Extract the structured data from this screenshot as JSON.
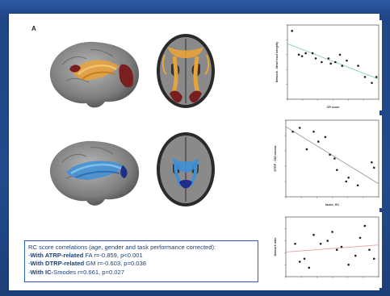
{
  "panel": {
    "label": "A"
  },
  "caption": {
    "line1": "RC score correlations (age, gender and task performance corrected):",
    "line2_prefix": "-",
    "line2_bold": "With ATRP-related",
    "line2_rest": " FA  r=-0.859, p<0.001",
    "line3_prefix": "-",
    "line3_bold": "With DTRP-related",
    "line3_rest": " GM  r=-0.603, p=0.038",
    "line4_prefix": "-",
    "line4_bold": "With IC-",
    "line4_rest": "Smodes r=0.661, p=0.027"
  },
  "colors": {
    "background": "#1f4585",
    "tract_orange": "#e8a23a",
    "region_red": "#7a1f1f",
    "tract_blue": "#3f8fd6",
    "fit_green": "#8fd0b0",
    "fit_gray": "#9a9a9a",
    "fit_red": "#e8a0a0"
  },
  "chart_data": [
    {
      "type": "scatter",
      "ylabel": "Network - Mean tract integrity",
      "xlabel": "CR score",
      "fit_line": true,
      "points": [
        [
          -0.9,
          0.92
        ],
        [
          -0.75,
          0.6
        ],
        [
          -0.68,
          0.58
        ],
        [
          -0.6,
          0.62
        ],
        [
          -0.45,
          0.62
        ],
        [
          -0.38,
          0.55
        ],
        [
          -0.25,
          0.5
        ],
        [
          -0.1,
          0.55
        ],
        [
          -0.05,
          0.48
        ],
        [
          0.05,
          0.5
        ],
        [
          0.15,
          0.6
        ],
        [
          0.2,
          0.45
        ],
        [
          0.3,
          0.52
        ],
        [
          0.55,
          0.45
        ],
        [
          0.7,
          0.3
        ],
        [
          0.85,
          0.22
        ],
        [
          0.95,
          0.3
        ]
      ]
    },
    {
      "type": "scatter",
      "ylabel": "DTRP - GM volume",
      "xlabel": "factor_RC",
      "fit_line": true,
      "points": [
        [
          -0.85,
          0.85
        ],
        [
          -0.7,
          0.9
        ],
        [
          -0.55,
          0.62
        ],
        [
          -0.4,
          0.85
        ],
        [
          -0.3,
          0.72
        ],
        [
          -0.15,
          0.78
        ],
        [
          -0.05,
          0.55
        ],
        [
          0.05,
          0.5
        ],
        [
          0.1,
          0.35
        ],
        [
          0.3,
          0.2
        ],
        [
          0.35,
          0.25
        ],
        [
          0.55,
          0.15
        ],
        [
          0.85,
          0.45
        ],
        [
          0.9,
          0.38
        ]
      ]
    },
    {
      "type": "scatter",
      "ylabel": "Network ratio",
      "xlabel": "",
      "fit_line": true,
      "points": [
        [
          -0.8,
          0.55
        ],
        [
          -0.7,
          0.25
        ],
        [
          -0.6,
          0.3
        ],
        [
          -0.5,
          0.15
        ],
        [
          -0.4,
          0.7
        ],
        [
          -0.25,
          0.55
        ],
        [
          -0.1,
          0.6
        ],
        [
          0.0,
          0.75
        ],
        [
          0.1,
          0.45
        ],
        [
          0.2,
          0.5
        ],
        [
          0.35,
          0.2
        ],
        [
          0.5,
          0.35
        ],
        [
          0.6,
          0.65
        ],
        [
          0.7,
          0.85
        ],
        [
          0.8,
          0.45
        ],
        [
          0.9,
          0.3
        ]
      ]
    }
  ]
}
